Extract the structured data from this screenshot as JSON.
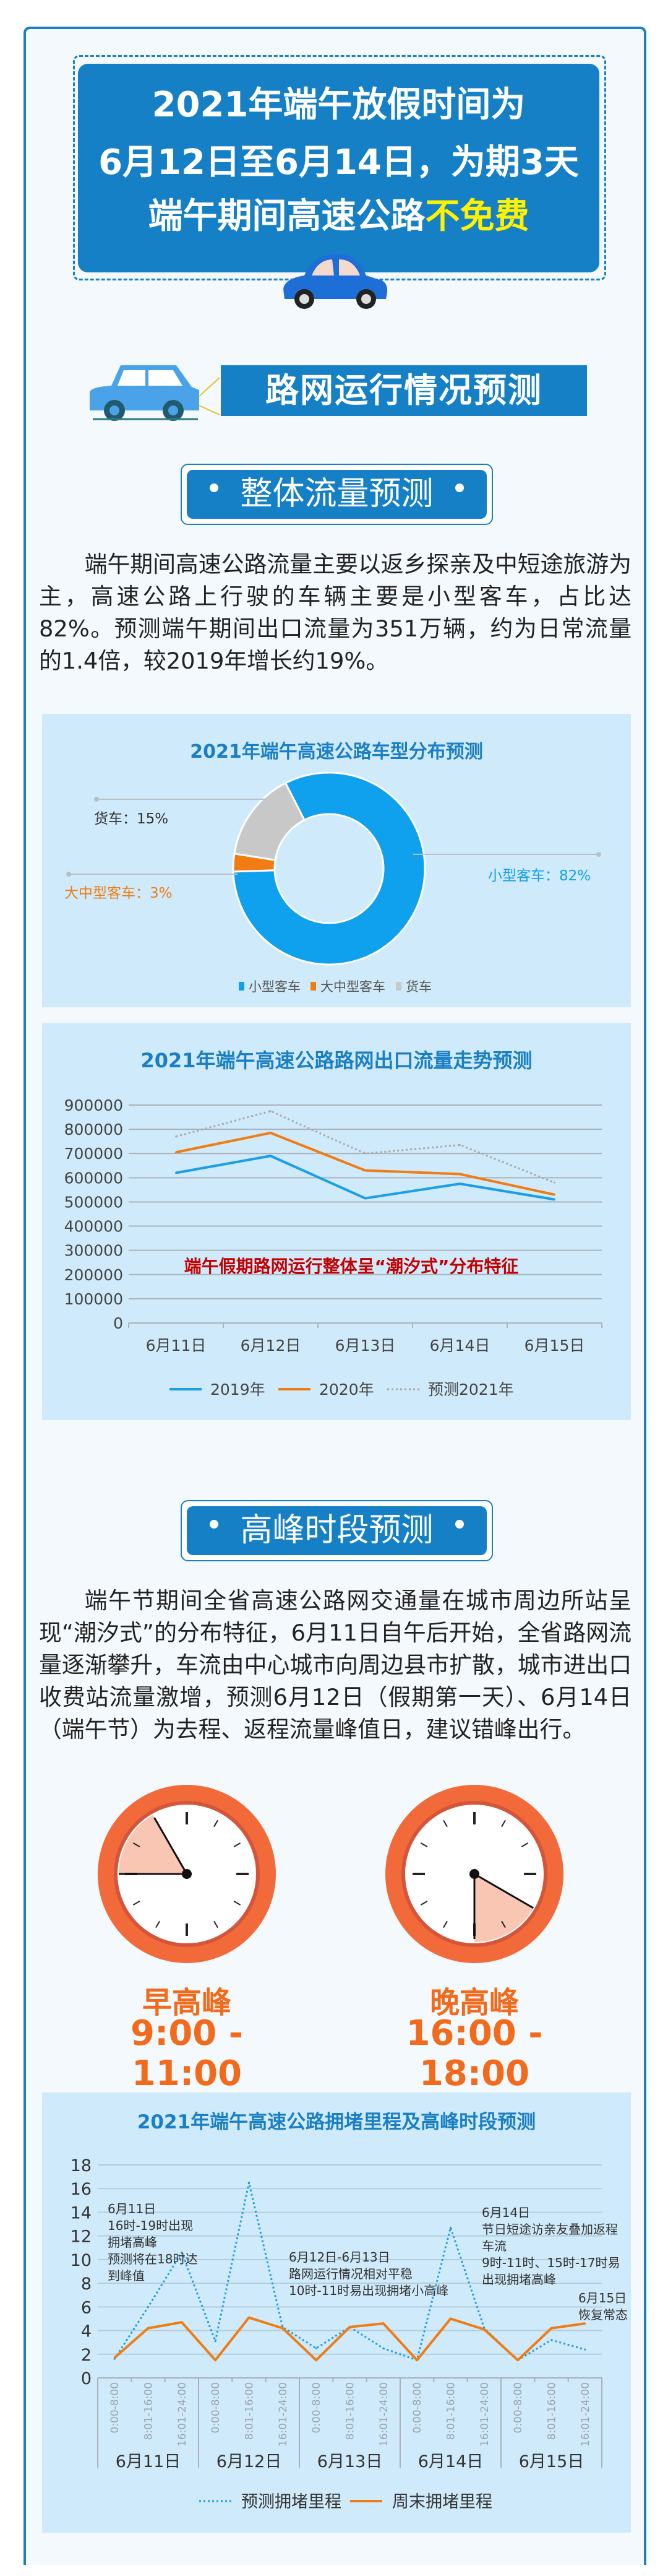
{
  "banner": {
    "line1": "2021年端午放假时间为",
    "line2": "6月12日至6月14日，为期3天",
    "line3_prefix": "端午期间高速公路",
    "line3_highlight": "不免费"
  },
  "section_header": "路网运行情况预测",
  "overall": {
    "title": "整体流量预测",
    "paragraph": "端午期间高速公路流量主要以返乡探亲及中短途旅游为主，高速公路上行驶的车辆主要是小型客车，占比达82%。预测端午期间出口流量为351万辆，约为日常流量的1.4倍，较2019年增长约19%。"
  },
  "peak": {
    "title": "高峰时段预测",
    "paragraph": "端午节期间全省高速公路网交通量在城市周边所站呈现“潮汐式”的分布特征，6月11日自午后开始，全省路网流量逐渐攀升，车流由中心城市向周边县市扩散，城市进出口收费站流量激增，预测6月12日（假期第一天）、6月14日（端午节）为去程、返程流量峰值日，建议错峰出行。",
    "morning": {
      "label": "早高峰",
      "time": "9:00 - 11:00",
      "start_hour": 9,
      "end_hour": 11
    },
    "evening": {
      "label": "晚高峰",
      "time": "16:00 - 18:00",
      "start_hour": 16,
      "end_hour": 18
    }
  },
  "colors": {
    "brand_blue": "#1580c6",
    "card_bg": "#cfeafa",
    "highlight_yellow": "#fff200",
    "peak_orange": "#f26a1b"
  },
  "icons": [
    "car-icon",
    "car-towing-icon",
    "clock-icon"
  ],
  "chart_data": [
    {
      "type": "pie",
      "title": "2021年端午高速公路车型分布预测",
      "donut": true,
      "slices": [
        {
          "name": "小型客车",
          "value": 82,
          "label": "小型客车：82%",
          "color": "#0fa0ee"
        },
        {
          "name": "大中型客车",
          "value": 3,
          "label": "大中型客车：3%",
          "color": "#f07c13"
        },
        {
          "name": "货车",
          "value": 15,
          "label": "货车：15%",
          "color": "#c8c8c8"
        }
      ],
      "legend": "bottom"
    },
    {
      "type": "line",
      "title": "2021年端午高速公路路网出口流量走势预测",
      "categories": [
        "6月11日",
        "6月12日",
        "6月13日",
        "6月14日",
        "6月15日"
      ],
      "yticks": [
        "0",
        "100000",
        "200000",
        "300000",
        "400000",
        "500000",
        "600000",
        "700000",
        "800000",
        "900000"
      ],
      "ylim": [
        0,
        900000
      ],
      "grid": true,
      "annotation": "端午假期路网运行整体呈“潮汐式”分布特征",
      "series": [
        {
          "name": "2019年",
          "values": [
            620000,
            690000,
            515000,
            575000,
            510000
          ],
          "color": "#1a9ee6",
          "style": "solid"
        },
        {
          "name": "2020年",
          "values": [
            705000,
            785000,
            630000,
            615000,
            530000
          ],
          "color": "#f07c13",
          "style": "solid"
        },
        {
          "name": "预测2021年",
          "values": [
            770000,
            875000,
            700000,
            735000,
            580000
          ],
          "color": "#a9a9a9",
          "style": "dotted"
        }
      ],
      "legend": "bottom"
    },
    {
      "type": "line",
      "title": "2021年端午高速公路拥堵里程及高峰时段预测",
      "days": [
        "6月11日",
        "6月12日",
        "6月13日",
        "6月14日",
        "6月15日"
      ],
      "slots": [
        "0:00-8:00",
        "8:01-16:00",
        "16:01-24:00"
      ],
      "yticks": [
        "0",
        "2",
        "4",
        "6",
        "8",
        "10",
        "12",
        "14",
        "16",
        "18"
      ],
      "ylim": [
        0,
        18
      ],
      "grid": true,
      "series": [
        {
          "name": "预测拥堵里程",
          "values": [
            1.6,
            6.0,
            10.6,
            3.1,
            16.5,
            4.3,
            2.5,
            4.3,
            2.5,
            1.5,
            12.7,
            4.2,
            1.5,
            3.2,
            2.4
          ],
          "color": "#1a9ee6",
          "style": "dotted"
        },
        {
          "name": "周末拥堵里程",
          "values": [
            1.7,
            4.2,
            4.7,
            1.5,
            5.1,
            4.2,
            1.5,
            4.3,
            4.6,
            1.5,
            5.0,
            4.1,
            1.5,
            4.2,
            4.6
          ],
          "color": "#f07c13",
          "style": "solid"
        }
      ],
      "annotations": [
        "6月11日\n16时-19时出现\n拥堵高峰\n预测将在18时达\n到峰值",
        "6月12日-6月13日\n路网运行情况相对平稳\n10时-11时易出现拥堵小高峰",
        "6月14日\n节日短途访亲友叠加返程\n车流\n9时-11时、15时-17时易\n出现拥堵高峰",
        "6月15日\n恢复常态"
      ],
      "legend": "bottom"
    }
  ]
}
